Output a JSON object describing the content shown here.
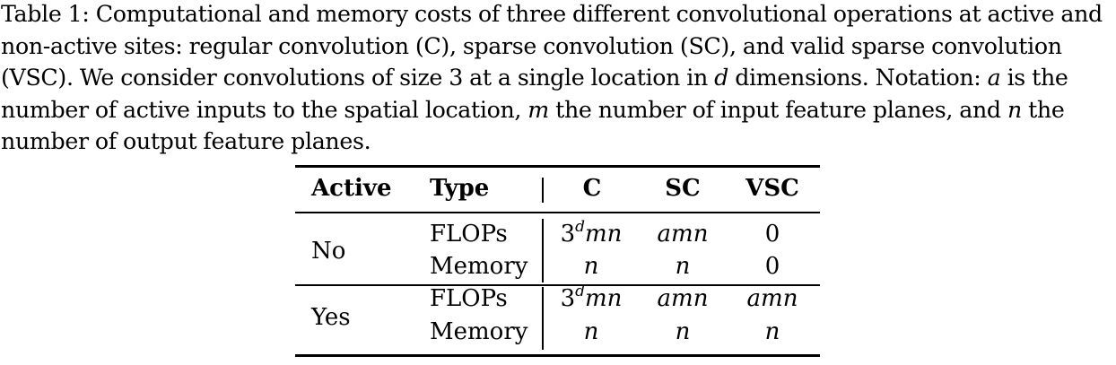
{
  "caption": {
    "lines": [
      {
        "parts": [
          {
            "t": "Table 1: Computational and memory costs of three different convolutional operations at active and"
          }
        ]
      },
      {
        "parts": [
          {
            "t": "non-active sites: regular convolution (C), sparse convolution (SC), and valid sparse convolution"
          }
        ]
      },
      {
        "parts": [
          {
            "t": "(VSC). We consider convolutions of size 3 at a single location in "
          },
          {
            "t": "d",
            "math": true
          },
          {
            "t": " dimensions. Notation: "
          },
          {
            "t": "a",
            "math": true
          },
          {
            "t": " is the"
          }
        ]
      },
      {
        "parts": [
          {
            "t": "number of active inputs to the spatial location, "
          },
          {
            "t": "m",
            "math": true
          },
          {
            "t": " the number of input feature planes, and "
          },
          {
            "t": "n",
            "math": true
          },
          {
            "t": " the"
          }
        ]
      },
      {
        "parts": [
          {
            "t": "number of output feature planes."
          }
        ]
      }
    ]
  },
  "table": {
    "headers": {
      "active": "Active",
      "type": "Type",
      "c": "C",
      "sc": "SC",
      "vsc": "VSC"
    },
    "groups": [
      {
        "active": "No",
        "rows": [
          {
            "type": "FLOPs",
            "c_base": "3",
            "c_sup": "d",
            "c_rest": "mn",
            "sc": "amn",
            "vsc": "0"
          },
          {
            "type": "Memory",
            "c": "n",
            "sc": "n",
            "vsc": "0"
          }
        ]
      },
      {
        "active": "Yes",
        "rows": [
          {
            "type": "FLOPs",
            "c_base": "3",
            "c_sup": "d",
            "c_rest": "mn",
            "sc": "amn",
            "vsc": "amn"
          },
          {
            "type": "Memory",
            "c": "n",
            "sc": "n",
            "vsc": "n"
          }
        ]
      }
    ]
  }
}
